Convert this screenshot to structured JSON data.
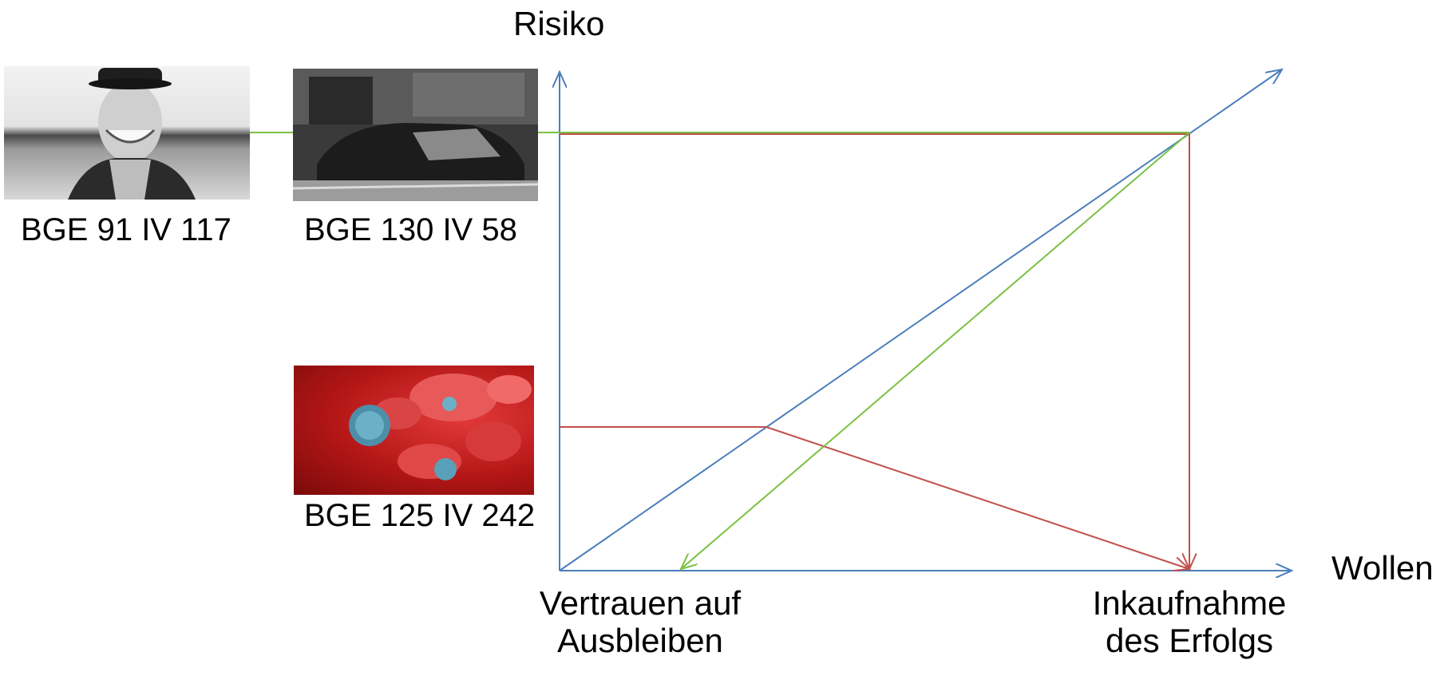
{
  "axes": {
    "y_label": "Risiko",
    "x_label": "Wollen",
    "x_left_label": [
      "Vertrauen auf",
      "Ausbleiben"
    ],
    "x_right_label": [
      "Inkaufnahme",
      "des Erfolgs"
    ]
  },
  "cases": [
    {
      "caption": "BGE 91 IV 117",
      "image": "portrait-man-cap"
    },
    {
      "caption": "BGE 130 IV 58",
      "image": "car-crash"
    },
    {
      "caption": "BGE 125 IV 242",
      "image": "blood-cells-virus"
    }
  ],
  "colors": {
    "axis_blue": "#4a7ebb",
    "line_green": "#7ac143",
    "line_red": "#c0504d"
  }
}
